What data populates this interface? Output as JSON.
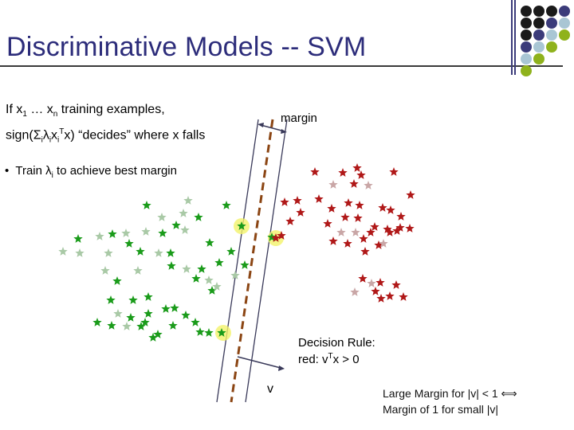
{
  "slide": {
    "title": "Discriminative Models -- SVM",
    "line1": {
      "prefix": "If x",
      "sub1": "1",
      "mid": " … x",
      "subn": "n",
      "suffix": " training examples,"
    },
    "line2": {
      "a": "sign(",
      "sum": "Σ",
      "subi": "i",
      "lambda": "λ",
      "subi2": "i",
      "x": "x",
      "subi3": "i",
      "supT": "T",
      "rest": "x) “decides” where x falls"
    },
    "bullet": {
      "marker": "•",
      "prefix": "Train ",
      "lambda": "λ",
      "subi": "i",
      "suffix": " to achieve best margin"
    },
    "margin_label": "margin",
    "decision_rule": {
      "line1": "Decision Rule:",
      "line2_prefix": "red: v",
      "line2_sup": "T",
      "line2_suffix": "x > 0"
    },
    "v_label": "v",
    "large_margin": {
      "line1": "Large Margin for |v| < 1 ⟺",
      "line2": "Margin of 1 for small |v|"
    }
  },
  "colors": {
    "title": "#2c2c7a",
    "green_star": "#1a9b1a",
    "light_green_star": "#a9c9a6",
    "red_star": "#b01818",
    "pink_star": "#c9a6a6",
    "support_halo": "#f3f36a",
    "boundary": "#8b4513",
    "margin_line": "#3a3a5a",
    "dot_dark": "#1a1a1a",
    "dot_navy": "#3b3b7a",
    "dot_light_blue": "#a9c6d4",
    "dot_olive": "#8fb21c"
  },
  "decor": {
    "dot_grid": [
      [
        "dot_dark",
        "dot_dark",
        "dot_dark",
        "dot_navy"
      ],
      [
        "dot_dark",
        "dot_dark",
        "dot_navy",
        "dot_light_blue"
      ],
      [
        "dot_dark",
        "dot_navy",
        "dot_light_blue",
        "dot_olive"
      ],
      [
        "dot_navy",
        "dot_light_blue",
        "dot_olive",
        ""
      ],
      [
        "dot_light_blue",
        "dot_olive",
        "",
        ""
      ],
      [
        "dot_olive",
        "",
        "",
        ""
      ]
    ]
  }
}
